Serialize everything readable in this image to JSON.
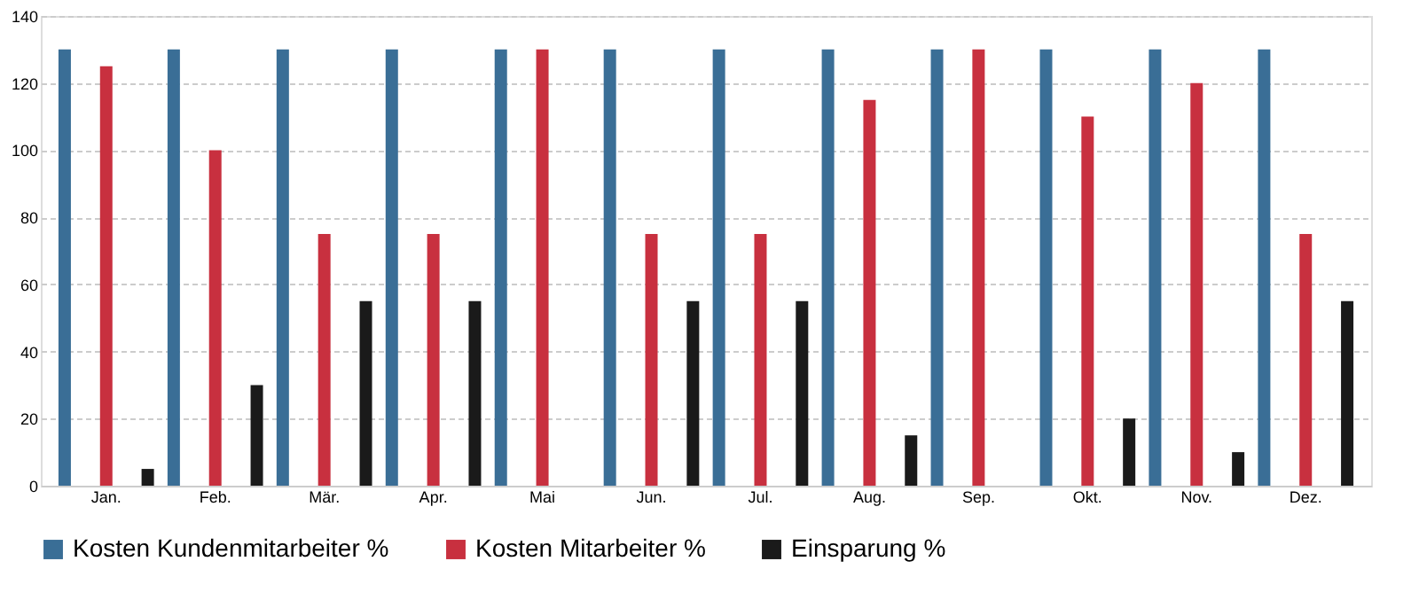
{
  "chart_data": {
    "type": "bar",
    "categories": [
      "Jan.",
      "Feb.",
      "Mär.",
      "Apr.",
      "Mai",
      "Jun.",
      "Jul.",
      "Aug.",
      "Sep.",
      "Okt.",
      "Nov.",
      "Dez."
    ],
    "series": [
      {
        "name": "Kosten Kundenmitarbeiter %",
        "color": "#3a6e96",
        "values": [
          130,
          130,
          130,
          130,
          130,
          130,
          130,
          130,
          130,
          130,
          130,
          130
        ]
      },
      {
        "name": "Kosten Mitarbeiter %",
        "color": "#c8303f",
        "values": [
          125,
          100,
          75,
          75,
          130,
          75,
          75,
          115,
          130,
          110,
          120,
          75
        ]
      },
      {
        "name": "Einsparung %",
        "color": "#1a1a1a",
        "values": [
          5,
          30,
          55,
          55,
          null,
          55,
          55,
          15,
          null,
          20,
          10,
          55
        ]
      }
    ],
    "ylim": [
      0,
      140
    ],
    "yticks": [
      0,
      20,
      40,
      60,
      80,
      100,
      120,
      140
    ],
    "grid": "y",
    "legend": "bottom"
  }
}
